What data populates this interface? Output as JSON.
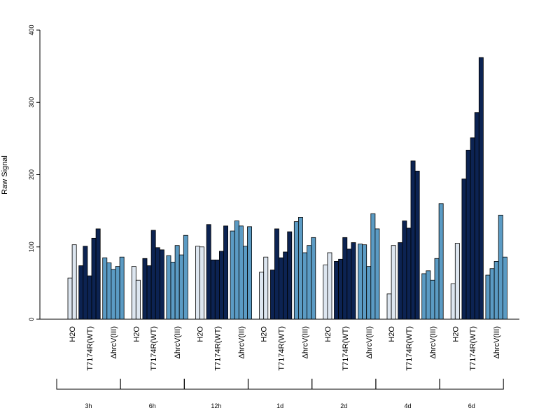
{
  "chart_data": {
    "type": "bar",
    "ylabel": "Raw Signal",
    "ylim": [
      0,
      400
    ],
    "yticks": [
      0,
      100,
      200,
      300,
      400
    ],
    "grid": false,
    "categories": [
      "H2O",
      "T7174R(WT)",
      "ΔhrcV(III)"
    ],
    "category_colors": [
      "#dde6f0",
      "#0c2352",
      "#5b9bc4"
    ],
    "time_groups": [
      {
        "name": "3h",
        "series": [
          {
            "category": "H2O",
            "values": [
              57,
              103
            ]
          },
          {
            "category": "T7174R(WT)",
            "values": [
              74,
              101,
              60,
              112,
              125
            ]
          },
          {
            "category": "ΔhrcV(III)",
            "values": [
              85,
              78,
              69,
              73,
              86
            ]
          }
        ]
      },
      {
        "name": "6h",
        "series": [
          {
            "category": "H2O",
            "values": [
              73,
              54
            ]
          },
          {
            "category": "T7174R(WT)",
            "values": [
              84,
              74,
              123,
              99,
              96
            ]
          },
          {
            "category": "ΔhrcV(III)",
            "values": [
              88,
              79,
              102,
              89,
              116
            ]
          }
        ]
      },
      {
        "name": "12h",
        "series": [
          {
            "category": "H2O",
            "values": [
              101,
              100
            ]
          },
          {
            "category": "T7174R(WT)",
            "values": [
              131,
              82,
              82,
              94,
              129
            ]
          },
          {
            "category": "ΔhrcV(III)",
            "values": [
              122,
              136,
              129,
              101,
              128
            ]
          }
        ]
      },
      {
        "name": "1d",
        "series": [
          {
            "category": "H2O",
            "values": [
              65,
              86
            ]
          },
          {
            "category": "T7174R(WT)",
            "values": [
              68,
              125,
              85,
              93,
              121
            ]
          },
          {
            "category": "ΔhrcV(III)",
            "values": [
              135,
              141,
              92,
              102,
              113
            ]
          }
        ]
      },
      {
        "name": "2d",
        "series": [
          {
            "category": "H2O",
            "values": [
              75,
              92
            ]
          },
          {
            "category": "T7174R(WT)",
            "values": [
              80,
              83,
              113,
              97,
              106
            ]
          },
          {
            "category": "ΔhrcV(III)",
            "values": [
              104,
              103,
              73,
              146,
              125
            ]
          }
        ]
      },
      {
        "name": "4d",
        "series": [
          {
            "category": "H2O",
            "values": [
              35,
              102
            ]
          },
          {
            "category": "T7174R(WT)",
            "values": [
              106,
              136,
              126,
              219,
              205
            ]
          },
          {
            "category": "ΔhrcV(III)",
            "values": [
              63,
              67,
              54,
              84,
              160
            ]
          }
        ]
      },
      {
        "name": "6d",
        "series": [
          {
            "category": "H2O",
            "values": [
              49,
              105
            ]
          },
          {
            "category": "T7174R(WT)",
            "values": [
              194,
              234,
              251,
              286,
              362
            ]
          },
          {
            "category": "ΔhrcV(III)",
            "values": [
              61,
              70,
              80,
              144,
              86
            ]
          }
        ]
      }
    ]
  }
}
